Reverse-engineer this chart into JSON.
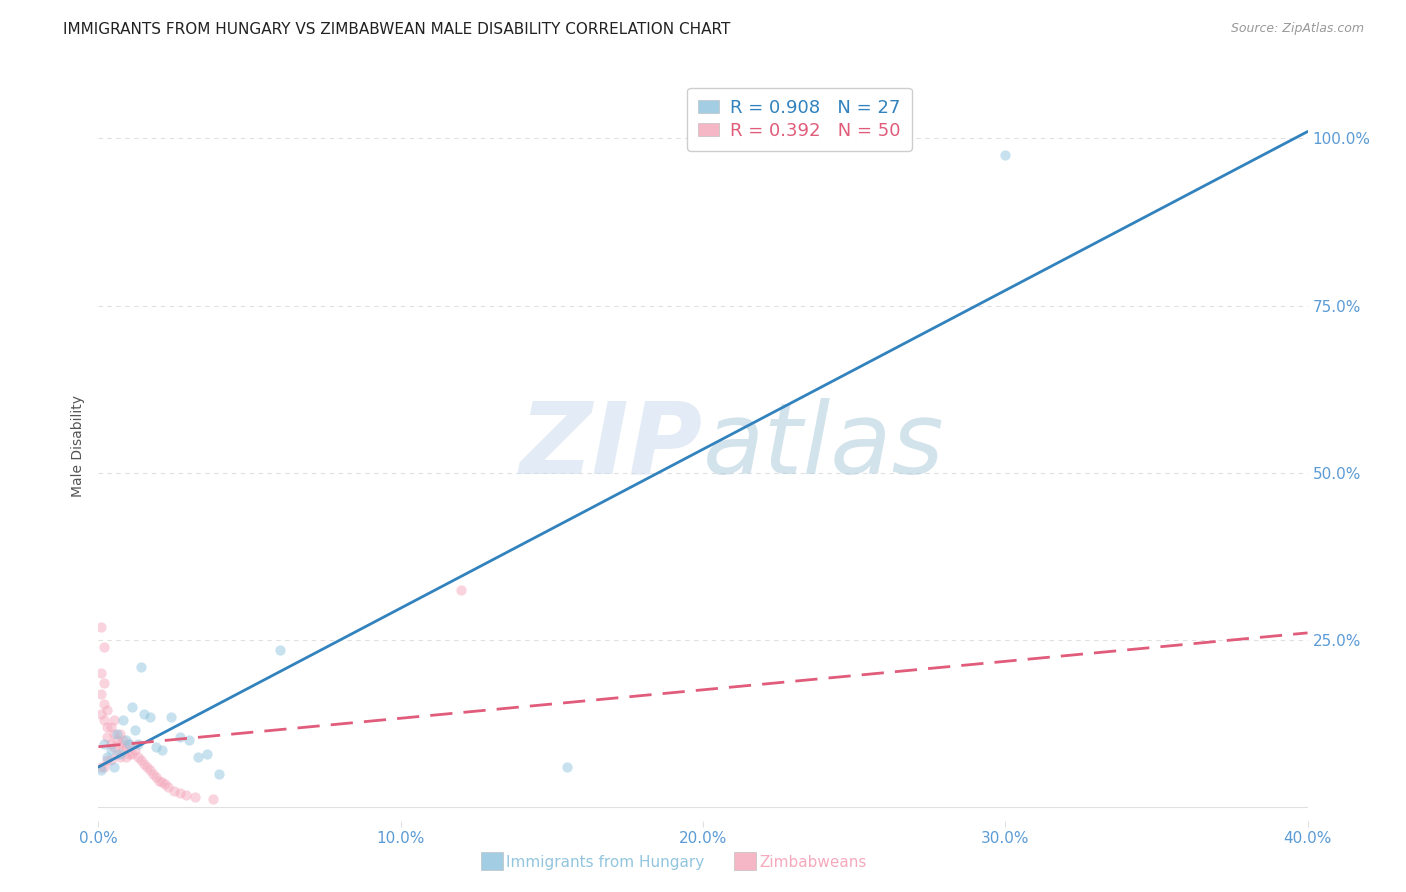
{
  "title": "IMMIGRANTS FROM HUNGARY VS ZIMBABWEAN MALE DISABILITY CORRELATION CHART",
  "source": "Source: ZipAtlas.com",
  "ylabel": "Male Disability",
  "legend_blue_label": "Immigrants from Hungary",
  "legend_pink_label": "Zimbabweans",
  "legend_blue_R": "R = 0.908",
  "legend_blue_N": "N = 27",
  "legend_pink_R": "R = 0.392",
  "legend_pink_N": "N = 50",
  "watermark_zip": "ZIP",
  "watermark_atlas": "atlas",
  "xlim": [
    0.0,
    0.4
  ],
  "ylim": [
    -0.02,
    1.1
  ],
  "xticks": [
    0.0,
    0.1,
    0.2,
    0.3,
    0.4
  ],
  "yticks": [
    0.0,
    0.25,
    0.5,
    0.75,
    1.0
  ],
  "ytick_labels_right": [
    "",
    "25.0%",
    "50.0%",
    "75.0%",
    "100.0%"
  ],
  "xtick_labels": [
    "0.0%",
    "10.0%",
    "20.0%",
    "30.0%",
    "40.0%"
  ],
  "blue_color": "#92c5de",
  "blue_line_color": "#3182bd",
  "pink_color": "#f4a9bc",
  "pink_line_color": "#e05c7a",
  "blue_scatter_x": [
    0.001,
    0.002,
    0.003,
    0.004,
    0.005,
    0.006,
    0.007,
    0.008,
    0.009,
    0.01,
    0.011,
    0.012,
    0.013,
    0.014,
    0.015,
    0.017,
    0.019,
    0.021,
    0.024,
    0.027,
    0.03,
    0.033,
    0.036,
    0.04,
    0.06,
    0.155,
    0.3
  ],
  "blue_scatter_y": [
    0.055,
    0.095,
    0.075,
    0.085,
    0.06,
    0.11,
    0.08,
    0.13,
    0.1,
    0.095,
    0.15,
    0.115,
    0.095,
    0.21,
    0.14,
    0.135,
    0.09,
    0.085,
    0.135,
    0.105,
    0.1,
    0.075,
    0.08,
    0.05,
    0.235,
    0.06,
    0.975
  ],
  "pink_scatter_x": [
    0.001,
    0.001,
    0.001,
    0.001,
    0.001,
    0.002,
    0.002,
    0.002,
    0.002,
    0.002,
    0.003,
    0.003,
    0.003,
    0.003,
    0.004,
    0.004,
    0.004,
    0.005,
    0.005,
    0.005,
    0.006,
    0.006,
    0.007,
    0.007,
    0.007,
    0.008,
    0.008,
    0.009,
    0.009,
    0.01,
    0.01,
    0.011,
    0.012,
    0.013,
    0.014,
    0.015,
    0.016,
    0.017,
    0.018,
    0.019,
    0.02,
    0.021,
    0.022,
    0.023,
    0.025,
    0.027,
    0.029,
    0.032,
    0.038,
    0.12
  ],
  "pink_scatter_y": [
    0.27,
    0.2,
    0.17,
    0.14,
    0.06,
    0.24,
    0.185,
    0.155,
    0.13,
    0.06,
    0.145,
    0.12,
    0.105,
    0.07,
    0.12,
    0.095,
    0.07,
    0.13,
    0.11,
    0.09,
    0.1,
    0.08,
    0.11,
    0.095,
    0.075,
    0.1,
    0.085,
    0.09,
    0.075,
    0.095,
    0.08,
    0.08,
    0.085,
    0.075,
    0.07,
    0.065,
    0.06,
    0.055,
    0.05,
    0.045,
    0.04,
    0.038,
    0.035,
    0.03,
    0.025,
    0.022,
    0.018,
    0.015,
    0.012,
    0.325
  ],
  "grid_color": "#e0e0e0",
  "tick_color": "#5b9bd5",
  "title_color": "#222222",
  "dot_size": 55,
  "dot_alpha": 0.5,
  "line_width": 2.0
}
